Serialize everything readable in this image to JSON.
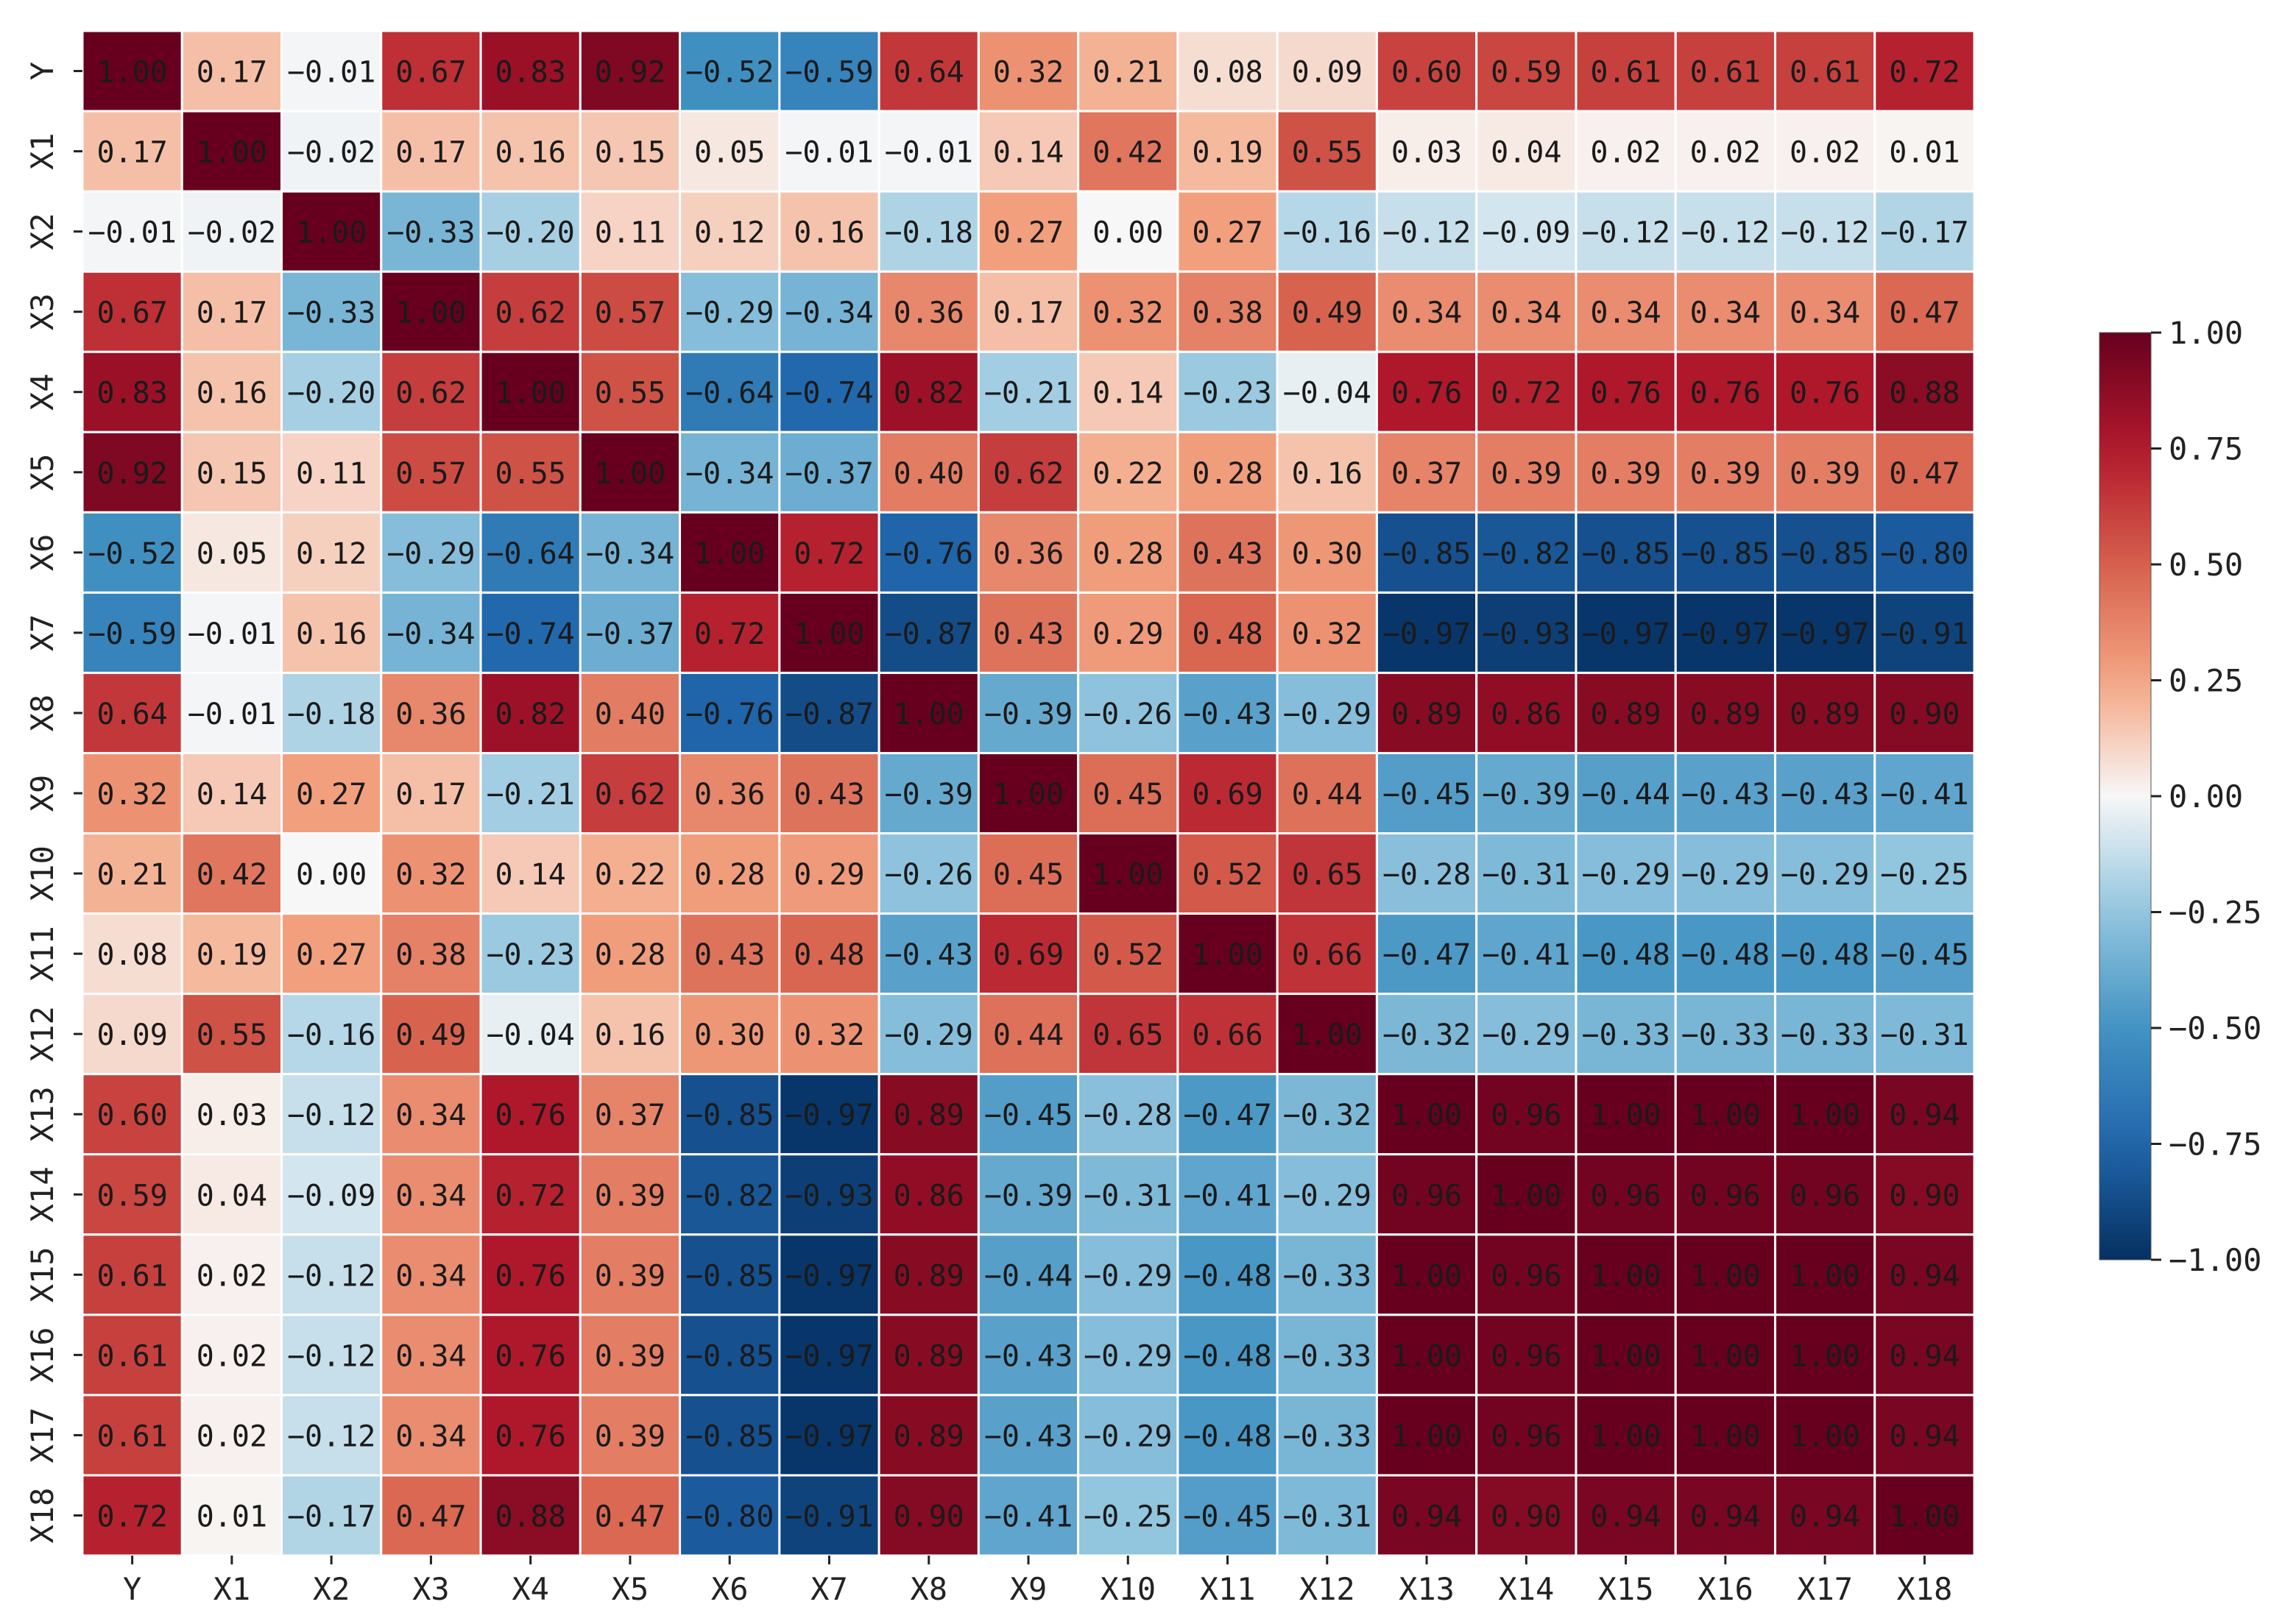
{
  "chart_data": {
    "type": "heatmap",
    "title": "",
    "xlabel": "",
    "ylabel": "",
    "row_labels": [
      "Y",
      "X1",
      "X2",
      "X3",
      "X4",
      "X5",
      "X6",
      "X7",
      "X8",
      "X9",
      "X10",
      "X11",
      "X12",
      "X13",
      "X14",
      "X15",
      "X16",
      "X17",
      "X18"
    ],
    "col_labels": [
      "Y",
      "X1",
      "X2",
      "X3",
      "X4",
      "X5",
      "X6",
      "X7",
      "X8",
      "X9",
      "X10",
      "X11",
      "X12",
      "X13",
      "X14",
      "X15",
      "X16",
      "X17",
      "X18"
    ],
    "values": [
      [
        1.0,
        0.17,
        -0.01,
        0.67,
        0.83,
        0.92,
        -0.52,
        -0.59,
        0.64,
        0.32,
        0.21,
        0.08,
        0.09,
        0.6,
        0.59,
        0.61,
        0.61,
        0.61,
        0.72
      ],
      [
        0.17,
        1.0,
        -0.02,
        0.17,
        0.16,
        0.15,
        0.05,
        -0.01,
        -0.01,
        0.14,
        0.42,
        0.19,
        0.55,
        0.03,
        0.04,
        0.02,
        0.02,
        0.02,
        0.01
      ],
      [
        -0.01,
        -0.02,
        1.0,
        -0.33,
        -0.2,
        0.11,
        0.12,
        0.16,
        -0.18,
        0.27,
        0.0,
        0.27,
        -0.16,
        -0.12,
        -0.09,
        -0.12,
        -0.12,
        -0.12,
        -0.17
      ],
      [
        0.67,
        0.17,
        -0.33,
        1.0,
        0.62,
        0.57,
        -0.29,
        -0.34,
        0.36,
        0.17,
        0.32,
        0.38,
        0.49,
        0.34,
        0.34,
        0.34,
        0.34,
        0.34,
        0.47
      ],
      [
        0.83,
        0.16,
        -0.2,
        0.62,
        1.0,
        0.55,
        -0.64,
        -0.74,
        0.82,
        -0.21,
        0.14,
        -0.23,
        -0.04,
        0.76,
        0.72,
        0.76,
        0.76,
        0.76,
        0.88
      ],
      [
        0.92,
        0.15,
        0.11,
        0.57,
        0.55,
        1.0,
        -0.34,
        -0.37,
        0.4,
        0.62,
        0.22,
        0.28,
        0.16,
        0.37,
        0.39,
        0.39,
        0.39,
        0.39,
        0.47
      ],
      [
        -0.52,
        0.05,
        0.12,
        -0.29,
        -0.64,
        -0.34,
        1.0,
        0.72,
        -0.76,
        0.36,
        0.28,
        0.43,
        0.3,
        -0.85,
        -0.82,
        -0.85,
        -0.85,
        -0.85,
        -0.8
      ],
      [
        -0.59,
        -0.01,
        0.16,
        -0.34,
        -0.74,
        -0.37,
        0.72,
        1.0,
        -0.87,
        0.43,
        0.29,
        0.48,
        0.32,
        -0.97,
        -0.93,
        -0.97,
        -0.97,
        -0.97,
        -0.91
      ],
      [
        0.64,
        -0.01,
        -0.18,
        0.36,
        0.82,
        0.4,
        -0.76,
        -0.87,
        1.0,
        -0.39,
        -0.26,
        -0.43,
        -0.29,
        0.89,
        0.86,
        0.89,
        0.89,
        0.89,
        0.9
      ],
      [
        0.32,
        0.14,
        0.27,
        0.17,
        -0.21,
        0.62,
        0.36,
        0.43,
        -0.39,
        1.0,
        0.45,
        0.69,
        0.44,
        -0.45,
        -0.39,
        -0.44,
        -0.43,
        -0.43,
        -0.41
      ],
      [
        0.21,
        0.42,
        0.0,
        0.32,
        0.14,
        0.22,
        0.28,
        0.29,
        -0.26,
        0.45,
        1.0,
        0.52,
        0.65,
        -0.28,
        -0.31,
        -0.29,
        -0.29,
        -0.29,
        -0.25
      ],
      [
        0.08,
        0.19,
        0.27,
        0.38,
        -0.23,
        0.28,
        0.43,
        0.48,
        -0.43,
        0.69,
        0.52,
        1.0,
        0.66,
        -0.47,
        -0.41,
        -0.48,
        -0.48,
        -0.48,
        -0.45
      ],
      [
        0.09,
        0.55,
        -0.16,
        0.49,
        -0.04,
        0.16,
        0.3,
        0.32,
        -0.29,
        0.44,
        0.65,
        0.66,
        1.0,
        -0.32,
        -0.29,
        -0.33,
        -0.33,
        -0.33,
        -0.31
      ],
      [
        0.6,
        0.03,
        -0.12,
        0.34,
        0.76,
        0.37,
        -0.85,
        -0.97,
        0.89,
        -0.45,
        -0.28,
        -0.47,
        -0.32,
        1.0,
        0.96,
        1.0,
        1.0,
        1.0,
        0.94
      ],
      [
        0.59,
        0.04,
        -0.09,
        0.34,
        0.72,
        0.39,
        -0.82,
        -0.93,
        0.86,
        -0.39,
        -0.31,
        -0.41,
        -0.29,
        0.96,
        1.0,
        0.96,
        0.96,
        0.96,
        0.9
      ],
      [
        0.61,
        0.02,
        -0.12,
        0.34,
        0.76,
        0.39,
        -0.85,
        -0.97,
        0.89,
        -0.44,
        -0.29,
        -0.48,
        -0.33,
        1.0,
        0.96,
        1.0,
        1.0,
        1.0,
        0.94
      ],
      [
        0.61,
        0.02,
        -0.12,
        0.34,
        0.76,
        0.39,
        -0.85,
        -0.97,
        0.89,
        -0.43,
        -0.29,
        -0.48,
        -0.33,
        1.0,
        0.96,
        1.0,
        1.0,
        1.0,
        0.94
      ],
      [
        0.61,
        0.02,
        -0.12,
        0.34,
        0.76,
        0.39,
        -0.85,
        -0.97,
        0.89,
        -0.43,
        -0.29,
        -0.48,
        -0.33,
        1.0,
        0.96,
        1.0,
        1.0,
        1.0,
        0.94
      ],
      [
        0.72,
        0.01,
        -0.17,
        0.47,
        0.88,
        0.47,
        -0.8,
        -0.91,
        0.9,
        -0.41,
        -0.25,
        -0.45,
        -0.31,
        0.94,
        0.9,
        0.94,
        0.94,
        0.94,
        1.0
      ]
    ],
    "vmin": -1.0,
    "vmax": 1.0,
    "colormap": "RdBu_r",
    "colorbar": {
      "ticks": [
        1.0,
        0.75,
        0.5,
        0.25,
        0.0,
        -0.25,
        -0.5,
        -0.75,
        -1.0
      ],
      "tick_labels": [
        "1.00",
        "0.75",
        "0.50",
        "0.25",
        "0.00",
        "−0.25",
        "−0.50",
        "−0.75",
        "−1.00"
      ]
    },
    "value_format": "2 decimals",
    "grid": false,
    "legend_position": "right"
  }
}
